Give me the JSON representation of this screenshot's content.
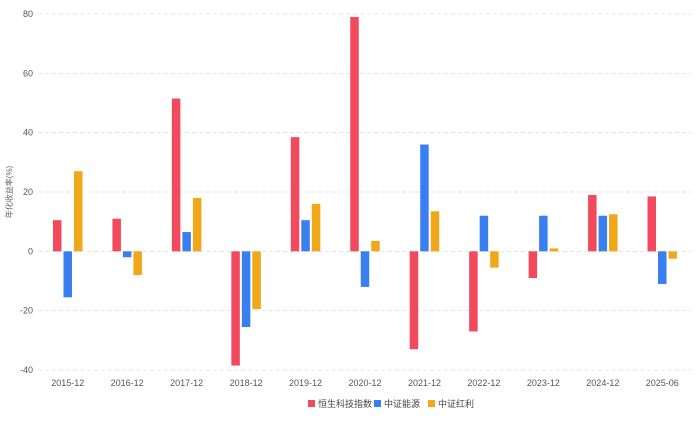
{
  "chart_data": {
    "type": "bar",
    "title": "",
    "xlabel": "",
    "ylabel": "年化收益率(%)",
    "ylim": [
      -40,
      80
    ],
    "yticks": [
      -40,
      -20,
      0,
      20,
      40,
      60,
      80
    ],
    "grid": true,
    "legend_position": "bottom",
    "categories": [
      "2015-12",
      "2016-12",
      "2017-12",
      "2018-12",
      "2019-12",
      "2020-12",
      "2021-12",
      "2022-12",
      "2023-12",
      "2024-12",
      "2025-06"
    ],
    "series": [
      {
        "name": "恒生科技指数",
        "color": "#f24a5c",
        "values": [
          10.5,
          11,
          51.5,
          -38.5,
          38.5,
          79,
          -33,
          -27,
          -9,
          19,
          18.5
        ]
      },
      {
        "name": "中证能源",
        "color": "#3a7ff0",
        "values": [
          -15.5,
          -2,
          6.5,
          -25.5,
          10.5,
          -12,
          36,
          12,
          12,
          12,
          -11
        ]
      },
      {
        "name": "中证红利",
        "color": "#f0a818",
        "values": [
          27,
          -8,
          18,
          -19.5,
          16,
          3.5,
          13.5,
          -5.5,
          1,
          12.5,
          -2.5
        ]
      }
    ]
  }
}
